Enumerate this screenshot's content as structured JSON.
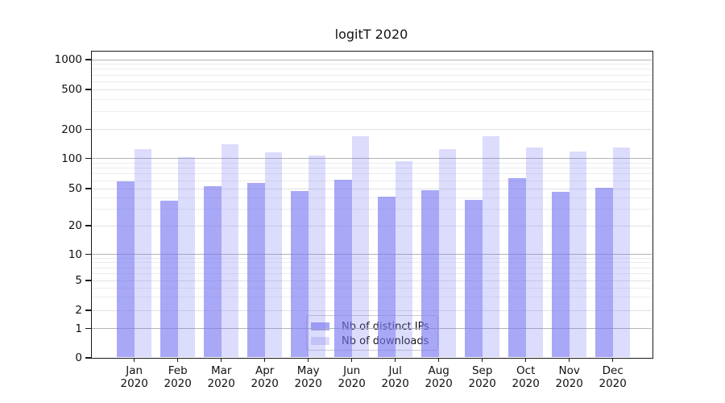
{
  "title": "logitT 2020",
  "chart_data": {
    "type": "bar",
    "title": "logitT 2020",
    "xlabel": "",
    "ylabel": "",
    "scale": "log-like y axis with 0 baseline (symlog)",
    "grid": "both (major darker at decades, faint log minors)",
    "legend_position": "lower center inside plot",
    "months": [
      "Jan",
      "Feb",
      "Mar",
      "Apr",
      "May",
      "Jun",
      "Jul",
      "Aug",
      "Sep",
      "Oct",
      "Nov",
      "Dec"
    ],
    "year_label": "2020",
    "yticks": [
      0,
      1,
      2,
      5,
      10,
      20,
      50,
      100,
      200,
      500,
      1000
    ],
    "ylim": [
      0,
      1230
    ],
    "series": [
      {
        "name": "Nb of distinct IPs",
        "values": [
          59,
          37,
          53,
          57,
          47,
          61,
          41,
          48,
          38,
          63,
          46,
          51
        ]
      },
      {
        "name": "Nb of downloads",
        "values": [
          124,
          102,
          140,
          115,
          106,
          170,
          94,
          125,
          170,
          129,
          118,
          129
        ]
      }
    ]
  },
  "colors": {
    "bar_ips": "rgba(121,121,243,0.65)",
    "bar_downloads": "rgba(121,121,243,0.26)",
    "legend_swatch_ips": "#a8a8f7",
    "legend_swatch_downloads": "#dcdcfa",
    "grid_decade": "#b3b3b3",
    "grid_major": "#e1e1e6",
    "grid_minor": "#ececf0",
    "spine": "#1a1a1a",
    "text": "#111111"
  }
}
